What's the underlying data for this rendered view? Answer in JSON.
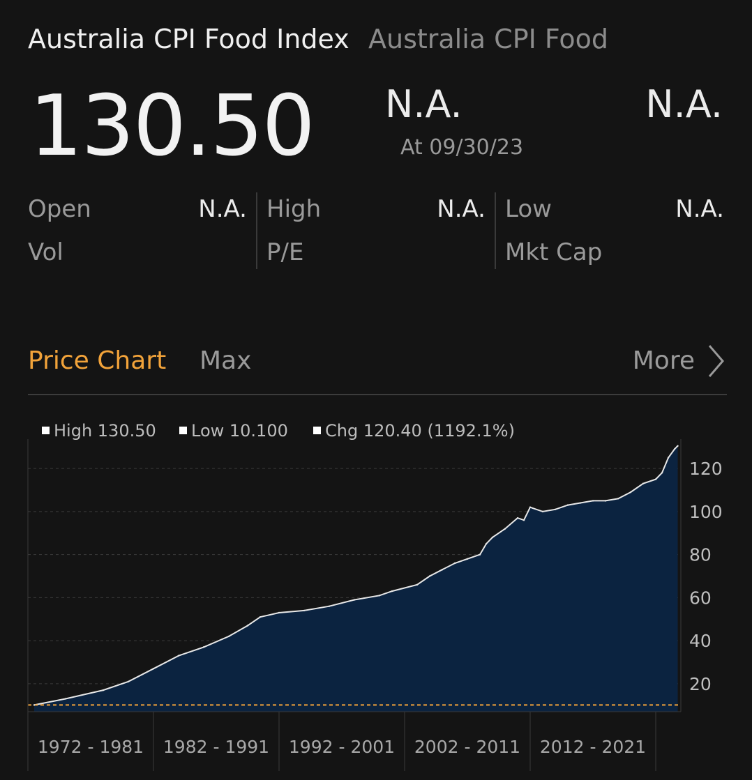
{
  "header": {
    "title": "Australia CPI Food Index",
    "subtitle": "Australia CPI Food",
    "price": "130.50",
    "change": "N.A.",
    "as_of": "At 09/30/23",
    "change_pct": "N.A."
  },
  "stats": [
    {
      "label": "Open",
      "value": "N.A."
    },
    {
      "label": "High",
      "value": "N.A."
    },
    {
      "label": "Low",
      "value": "N.A."
    },
    {
      "label": "Vol",
      "value": ""
    },
    {
      "label": "P/E",
      "value": ""
    },
    {
      "label": "Mkt Cap",
      "value": ""
    }
  ],
  "tabs": {
    "active": "Price Chart",
    "range": "Max",
    "more": "More"
  },
  "icons": {
    "more": "chevron-right-icon",
    "legend": "square-marker-icon"
  },
  "colors": {
    "accent": "#f2a33a",
    "fill": "#0b2340",
    "line": "#e8e8e8",
    "low_line": "#f2a33a"
  },
  "chart_data": {
    "type": "area",
    "legend": [
      "High 130.50",
      "Low 10.100",
      "Chg 120.40 (1192.1%)"
    ],
    "high": 130.5,
    "low": 10.1,
    "x_categories": [
      "1972 - 1981",
      "1982 - 1991",
      "1992 - 2001",
      "2002 - 2011",
      "2012 - 2021"
    ],
    "yticks": [
      20,
      40,
      60,
      80,
      100,
      120
    ],
    "ylim": [
      7,
      133
    ],
    "xlim": [
      1972.0,
      2024.0
    ],
    "grid": "horizontal-dashed",
    "y_axis_position": "right",
    "low_reference_line": 10.1,
    "x": [
      1972.5,
      1975,
      1978,
      1980,
      1982,
      1984,
      1986,
      1988,
      1989.5,
      1990.5,
      1992,
      1994,
      1996,
      1998,
      2000,
      2001,
      2003,
      2004,
      2005,
      2006,
      2007,
      2008,
      2008.5,
      2009,
      2010,
      2011,
      2011.5,
      2012,
      2013,
      2014,
      2015,
      2016,
      2017,
      2018,
      2019,
      2020,
      2021,
      2022,
      2022.5,
      2023,
      2023.5,
      2023.75
    ],
    "values": [
      10.1,
      13,
      17,
      21,
      27,
      33,
      37,
      42,
      47,
      51,
      53,
      54,
      56,
      59,
      61,
      63,
      66,
      70,
      73,
      76,
      78,
      80,
      85,
      88,
      92,
      97,
      96,
      102,
      100,
      101,
      103,
      104,
      105,
      105,
      106,
      109,
      113,
      115,
      118,
      125,
      129,
      130.5
    ]
  }
}
